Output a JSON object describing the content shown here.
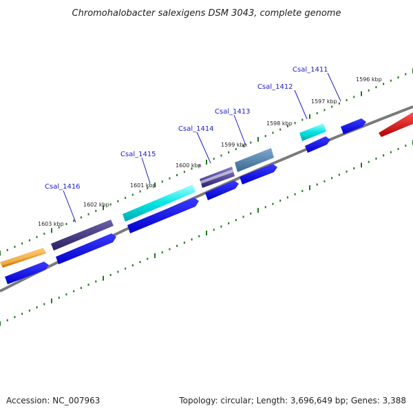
{
  "title": "Chromohalobacter salexigens DSM 3043, complete genome",
  "footer": {
    "accession": "Accession: NC_007963",
    "summary": "Topology: circular; Length: 3,696,649 bp; Genes: 3,388"
  },
  "ticks": [
    {
      "label": "1596 kbp",
      "kbp": 1596
    },
    {
      "label": "1597 kbp",
      "kbp": 1597
    },
    {
      "label": "1598 kbp",
      "kbp": 1598
    },
    {
      "label": "1599 kbp",
      "kbp": 1599
    },
    {
      "label": "1600 kbp",
      "kbp": 1600
    },
    {
      "label": "1601 kbp",
      "kbp": 1601
    },
    {
      "label": "1602 kbp",
      "kbp": 1602
    },
    {
      "label": "1603 kbp",
      "kbp": 1603
    }
  ],
  "genes": [
    {
      "name": "Csal_1411",
      "color": "#0000ee"
    },
    {
      "name": "Csal_1412",
      "color": "#00dddd"
    },
    {
      "name": "Csal_1413",
      "color": "#4f7fb0"
    },
    {
      "name": "Csal_1414",
      "color": "#6b5fb0"
    },
    {
      "name": "Csal_1415",
      "color": "#00dddd"
    },
    {
      "name": "Csal_1416",
      "color": "#4a3f8a"
    }
  ],
  "colors": {
    "backbone": "#7a7a7a",
    "tick": "#1a7a1a",
    "label_line": "#1a1acc",
    "label_text": "#1a1acc",
    "cds": "#0000ee",
    "orange_feature": "#f5a020",
    "red_feature": "#ee0000"
  }
}
